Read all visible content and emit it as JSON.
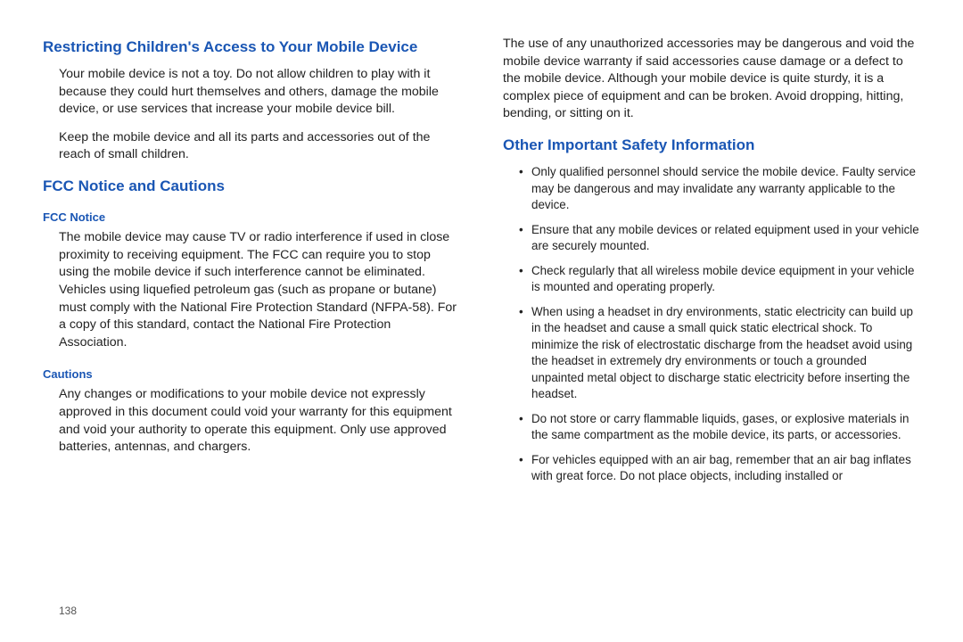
{
  "left": {
    "heading1": "Restricting Children's Access to Your Mobile Device",
    "p1": "Your mobile device is not a toy. Do not allow children to play with it because they could hurt themselves and others, damage the mobile device, or use services that increase your mobile device bill.",
    "p2": "Keep the mobile device and all its parts and accessories out of the reach of small children.",
    "heading2": "FCC Notice and Cautions",
    "sub1": "FCC Notice",
    "p3": "The mobile device may cause TV or radio interference if used in close proximity to receiving equipment. The FCC can require you to stop using the mobile device if such interference cannot be eliminated. Vehicles using liquefied petroleum gas (such as propane or butane) must comply with the National Fire Protection Standard (NFPA-58). For a copy of this standard, contact the National Fire Protection Association.",
    "sub2": "Cautions",
    "p4": "Any changes or modifications to your mobile device not expressly approved in this document could void your warranty for this equipment and void your authority to operate this equipment. Only use approved batteries, antennas, and chargers.",
    "pagenum": "138"
  },
  "right": {
    "p1": "The use of any unauthorized accessories may be dangerous and void the mobile device warranty if said accessories cause damage or a defect to the mobile device. Although your mobile device is quite sturdy, it is a complex piece of equipment and can be broken. Avoid dropping, hitting, bending, or sitting on it.",
    "heading": "Other Important Safety Information",
    "items": [
      "Only qualified personnel should service the mobile device. Faulty service may be dangerous and may invalidate any warranty applicable to the device.",
      "Ensure that any mobile devices or related equipment used in your vehicle are securely mounted.",
      "Check regularly that all wireless mobile device equipment in your vehicle is mounted and operating properly.",
      "When using a headset in dry environments, static electricity can build up in the headset and cause a small quick static electrical shock. To minimize the risk of electrostatic discharge from the headset avoid using the headset in extremely dry environments or touch a grounded unpainted metal object to discharge static electricity before inserting the headset.",
      "Do not store or carry flammable liquids, gases, or explosive materials in the same compartment as the mobile device, its parts, or accessories.",
      "For vehicles equipped with an air bag, remember that an air bag inflates with great force. Do not place objects, including installed or"
    ]
  },
  "colors": {
    "heading": "#1a56b4",
    "text": "#222222",
    "background": "#ffffff"
  }
}
